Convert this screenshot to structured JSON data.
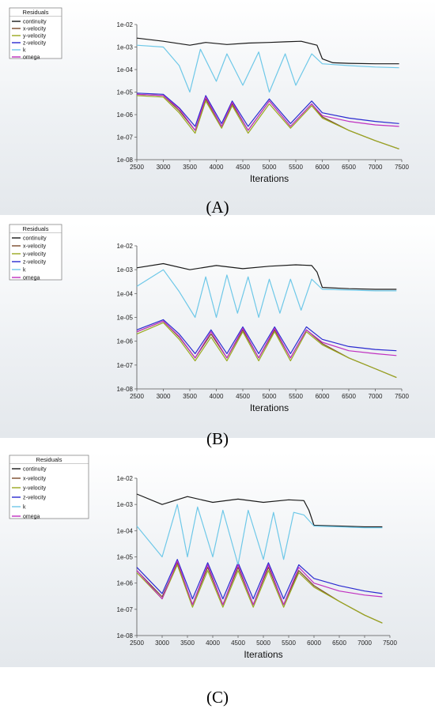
{
  "chart_data": [
    {
      "type": "line",
      "panel_label": "(A)",
      "legend_title": "Residuals",
      "xlabel": "Iterations",
      "ylabel": "",
      "xscale": "linear",
      "yscale": "log",
      "xlim": [
        2500,
        7500
      ],
      "ylim": [
        1e-08,
        0.01
      ],
      "xticks": [
        "2500",
        "3000",
        "3500",
        "4000",
        "4500",
        "5000",
        "5500",
        "6000",
        "6500",
        "7000",
        "7500"
      ],
      "yticks": [
        "1e-02",
        "1e-03",
        "1e-04",
        "1e-05",
        "1e-06",
        "1e-07",
        "1e-08"
      ],
      "legend_position": "top-left",
      "series": [
        {
          "name": "continuity",
          "color": "#1a1a1a",
          "x": [
            2500,
            3000,
            3500,
            3800,
            4200,
            4600,
            5000,
            5300,
            5600,
            5900,
            6000,
            6200,
            6500,
            7000,
            7450
          ],
          "y": [
            0.0025,
            0.0018,
            0.0012,
            0.0016,
            0.0013,
            0.0015,
            0.0016,
            0.0017,
            0.0018,
            0.0012,
            0.0003,
            0.0002,
            0.00019,
            0.00018,
            0.00018
          ]
        },
        {
          "name": "x-velocity",
          "color": "#7a4a2a",
          "x": [
            2500,
            3000,
            3300,
            3600,
            3800,
            4100,
            4300,
            4600,
            5000,
            5400,
            5800,
            6000,
            6500,
            7000,
            7450
          ],
          "y": [
            8e-06,
            7e-06,
            1.5e-06,
            2e-07,
            5e-06,
            3e-07,
            3e-06,
            2e-07,
            4e-06,
            3e-07,
            3e-06,
            8e-07,
            2e-07,
            7e-08,
            3e-08
          ]
        },
        {
          "name": "y-velocity",
          "color": "#9aa820",
          "x": [
            2500,
            3000,
            3300,
            3600,
            3800,
            4100,
            4300,
            4600,
            5000,
            5400,
            5800,
            6000,
            6500,
            7000,
            7450
          ],
          "y": [
            7e-06,
            6e-06,
            1.2e-06,
            1.5e-07,
            4e-06,
            2.5e-07,
            2.5e-06,
            1.5e-07,
            3e-06,
            2.5e-07,
            2.5e-06,
            7e-07,
            2e-07,
            7e-08,
            3e-08
          ]
        },
        {
          "name": "z-velocity",
          "color": "#2a2ad0",
          "x": [
            2500,
            3000,
            3300,
            3600,
            3800,
            4100,
            4300,
            4600,
            5000,
            5400,
            5800,
            6000,
            6500,
            7000,
            7450
          ],
          "y": [
            9e-06,
            8e-06,
            2e-06,
            3e-07,
            7e-06,
            4e-07,
            4e-06,
            3e-07,
            5e-06,
            4e-07,
            4e-06,
            1.2e-06,
            7e-07,
            5e-07,
            4e-07
          ]
        },
        {
          "name": "k",
          "color": "#6ec8e8",
          "x": [
            2500,
            3000,
            3300,
            3500,
            3700,
            4000,
            4200,
            4500,
            4800,
            5000,
            5300,
            5500,
            5800,
            6000,
            6500,
            7000,
            7450
          ],
          "y": [
            0.0012,
            0.001,
            0.00015,
            1e-05,
            0.0008,
            3e-05,
            0.0005,
            2e-05,
            0.0006,
            1e-05,
            0.0005,
            2e-05,
            0.0005,
            0.00018,
            0.00015,
            0.00013,
            0.00012
          ]
        },
        {
          "name": "omega",
          "color": "#c030c0",
          "x": [
            2500,
            3000,
            3300,
            3600,
            3800,
            4100,
            4300,
            4600,
            5000,
            5400,
            5800,
            6000,
            6500,
            7000,
            7450
          ],
          "y": [
            8e-06,
            7e-06,
            1.8e-06,
            2e-07,
            6e-06,
            3e-07,
            3.5e-06,
            2e-07,
            4e-06,
            3e-07,
            3e-06,
            9e-07,
            5e-07,
            3.5e-07,
            3e-07
          ]
        }
      ]
    },
    {
      "type": "line",
      "panel_label": "(B)",
      "legend_title": "Residuals",
      "xlabel": "Iterations",
      "ylabel": "",
      "xscale": "linear",
      "yscale": "log",
      "xlim": [
        2500,
        7500
      ],
      "ylim": [
        1e-08,
        0.01
      ],
      "xticks": [
        "2500",
        "3000",
        "3500",
        "4000",
        "4500",
        "5000",
        "5500",
        "6000",
        "6500",
        "7000",
        "7500"
      ],
      "yticks": [
        "1e-02",
        "1e-03",
        "1e-04",
        "1e-05",
        "1e-06",
        "1e-07",
        "1e-08"
      ],
      "legend_position": "top-left",
      "series": [
        {
          "name": "continuity",
          "color": "#1a1a1a",
          "x": [
            2500,
            3000,
            3500,
            4000,
            4500,
            5000,
            5500,
            5800,
            5900,
            6000,
            6500,
            7000,
            7400
          ],
          "y": [
            0.0012,
            0.0018,
            0.001,
            0.0015,
            0.0011,
            0.0014,
            0.0016,
            0.0015,
            0.0008,
            0.00018,
            0.00016,
            0.00015,
            0.00015
          ]
        },
        {
          "name": "x-velocity",
          "color": "#7a4a2a",
          "x": [
            2500,
            3000,
            3300,
            3600,
            3900,
            4200,
            4500,
            4800,
            5100,
            5400,
            5700,
            6000,
            6500,
            7000,
            7400
          ],
          "y": [
            2.5e-06,
            7e-06,
            1.5e-06,
            2e-07,
            2e-06,
            2e-07,
            3e-06,
            2e-07,
            3e-06,
            2e-07,
            3e-06,
            8e-07,
            2e-07,
            7e-08,
            3e-08
          ]
        },
        {
          "name": "y-velocity",
          "color": "#9aa820",
          "x": [
            2500,
            3000,
            3300,
            3600,
            3900,
            4200,
            4500,
            4800,
            5100,
            5400,
            5700,
            6000,
            6500,
            7000,
            7400
          ],
          "y": [
            2e-06,
            6e-06,
            1.2e-06,
            1.5e-07,
            1.5e-06,
            1.5e-07,
            2.5e-06,
            1.5e-07,
            2.5e-06,
            1.5e-07,
            2.5e-06,
            7e-07,
            2e-07,
            7e-08,
            3e-08
          ]
        },
        {
          "name": "z-velocity",
          "color": "#2a2ad0",
          "x": [
            2500,
            3000,
            3300,
            3600,
            3900,
            4200,
            4500,
            4800,
            5100,
            5400,
            5700,
            6000,
            6500,
            7000,
            7400
          ],
          "y": [
            3e-06,
            8e-06,
            2e-06,
            3e-07,
            3e-06,
            3e-07,
            4e-06,
            3e-07,
            4e-06,
            3e-07,
            4e-06,
            1.2e-06,
            6e-07,
            4.5e-07,
            4e-07
          ]
        },
        {
          "name": "k",
          "color": "#6ec8e8",
          "x": [
            2500,
            3000,
            3300,
            3600,
            3800,
            4000,
            4200,
            4400,
            4600,
            4800,
            5000,
            5200,
            5400,
            5600,
            5800,
            6000,
            6500,
            7000,
            7400
          ],
          "y": [
            0.0002,
            0.001,
            0.00012,
            1e-05,
            0.0005,
            1e-05,
            0.0006,
            1.5e-05,
            0.0005,
            1e-05,
            0.0004,
            1.5e-05,
            0.0004,
            2e-05,
            0.0004,
            0.00015,
            0.00014,
            0.00013,
            0.00013
          ]
        },
        {
          "name": "omega",
          "color": "#c030c0",
          "x": [
            2500,
            3000,
            3300,
            3600,
            3900,
            4200,
            4500,
            4800,
            5100,
            5400,
            5700,
            6000,
            6500,
            7000,
            7400
          ],
          "y": [
            2.5e-06,
            7e-06,
            1.6e-06,
            2e-07,
            2.5e-06,
            2e-07,
            3.5e-06,
            2e-07,
            3.5e-06,
            2e-07,
            3e-06,
            9e-07,
            4e-07,
            3e-07,
            2.5e-07
          ]
        }
      ]
    },
    {
      "type": "line",
      "panel_label": "(C)",
      "legend_title": "Residuals",
      "xlabel": "Iterations",
      "ylabel": "",
      "xscale": "linear",
      "yscale": "log",
      "xlim": [
        2500,
        7500
      ],
      "ylim": [
        1e-08,
        0.01
      ],
      "xticks": [
        "2500",
        "3000",
        "3500",
        "4000",
        "4500",
        "5000",
        "5500",
        "6000",
        "6500",
        "7000",
        "7500"
      ],
      "yticks": [
        "1e-02",
        "1e-03",
        "1e-04",
        "1e-05",
        "1e-06",
        "1e-07",
        "1e-08"
      ],
      "legend_position": "top-left",
      "series": [
        {
          "name": "continuity",
          "color": "#1a1a1a",
          "x": [
            2500,
            3000,
            3500,
            4000,
            4500,
            5000,
            5500,
            5800,
            5900,
            6000,
            6500,
            7000,
            7350
          ],
          "y": [
            0.0025,
            0.001,
            0.002,
            0.0012,
            0.0016,
            0.0012,
            0.0015,
            0.0014,
            0.0006,
            0.00016,
            0.00015,
            0.00014,
            0.00014
          ]
        },
        {
          "name": "x-velocity",
          "color": "#7a4a2a",
          "x": [
            2500,
            3000,
            3300,
            3600,
            3900,
            4200,
            4500,
            4800,
            5100,
            5400,
            5700,
            6000,
            6500,
            7000,
            7350
          ],
          "y": [
            3e-06,
            3e-07,
            6e-06,
            1.5e-07,
            4e-06,
            1.5e-07,
            4e-06,
            1.5e-07,
            4e-06,
            1.5e-07,
            3e-06,
            8e-07,
            2e-07,
            6e-08,
            3e-08
          ]
        },
        {
          "name": "y-velocity",
          "color": "#9aa820",
          "x": [
            2500,
            3000,
            3300,
            3600,
            3900,
            4200,
            4500,
            4800,
            5100,
            5400,
            5700,
            6000,
            6500,
            7000,
            7350
          ],
          "y": [
            2.5e-06,
            2.5e-07,
            5e-06,
            1.2e-07,
            3e-06,
            1.2e-07,
            3e-06,
            1.2e-07,
            3e-06,
            1.2e-07,
            2.5e-06,
            7e-07,
            2e-07,
            6e-08,
            3e-08
          ]
        },
        {
          "name": "z-velocity",
          "color": "#2a2ad0",
          "x": [
            2500,
            3000,
            3300,
            3600,
            3900,
            4200,
            4500,
            4800,
            5100,
            5400,
            5700,
            6000,
            6500,
            7000,
            7350
          ],
          "y": [
            4e-06,
            4e-07,
            8e-06,
            2.5e-07,
            6e-06,
            2.5e-07,
            6e-06,
            2.5e-07,
            6e-06,
            2.5e-07,
            5e-06,
            1.5e-06,
            8e-07,
            5e-07,
            4e-07
          ]
        },
        {
          "name": "k",
          "color": "#6ec8e8",
          "x": [
            2500,
            3000,
            3300,
            3500,
            3700,
            4000,
            4200,
            4500,
            4700,
            5000,
            5200,
            5400,
            5600,
            5800,
            6000,
            6500,
            7000,
            7350
          ],
          "y": [
            0.00015,
            1e-05,
            0.001,
            1e-05,
            0.0008,
            1e-05,
            0.0006,
            5e-06,
            0.0006,
            8e-06,
            0.0005,
            8e-06,
            0.0005,
            0.0004,
            0.00015,
            0.00014,
            0.00013,
            0.00013
          ]
        },
        {
          "name": "omega",
          "color": "#c030c0",
          "x": [
            2500,
            3000,
            3300,
            3600,
            3900,
            4200,
            4500,
            4800,
            5100,
            5400,
            5700,
            6000,
            6500,
            7000,
            7350
          ],
          "y": [
            3e-06,
            2.5e-07,
            7e-06,
            1.5e-07,
            5e-06,
            1.5e-07,
            5e-06,
            1.5e-07,
            5e-06,
            1.5e-07,
            4e-06,
            1e-06,
            5e-07,
            3.5e-07,
            3e-07
          ]
        }
      ]
    }
  ]
}
